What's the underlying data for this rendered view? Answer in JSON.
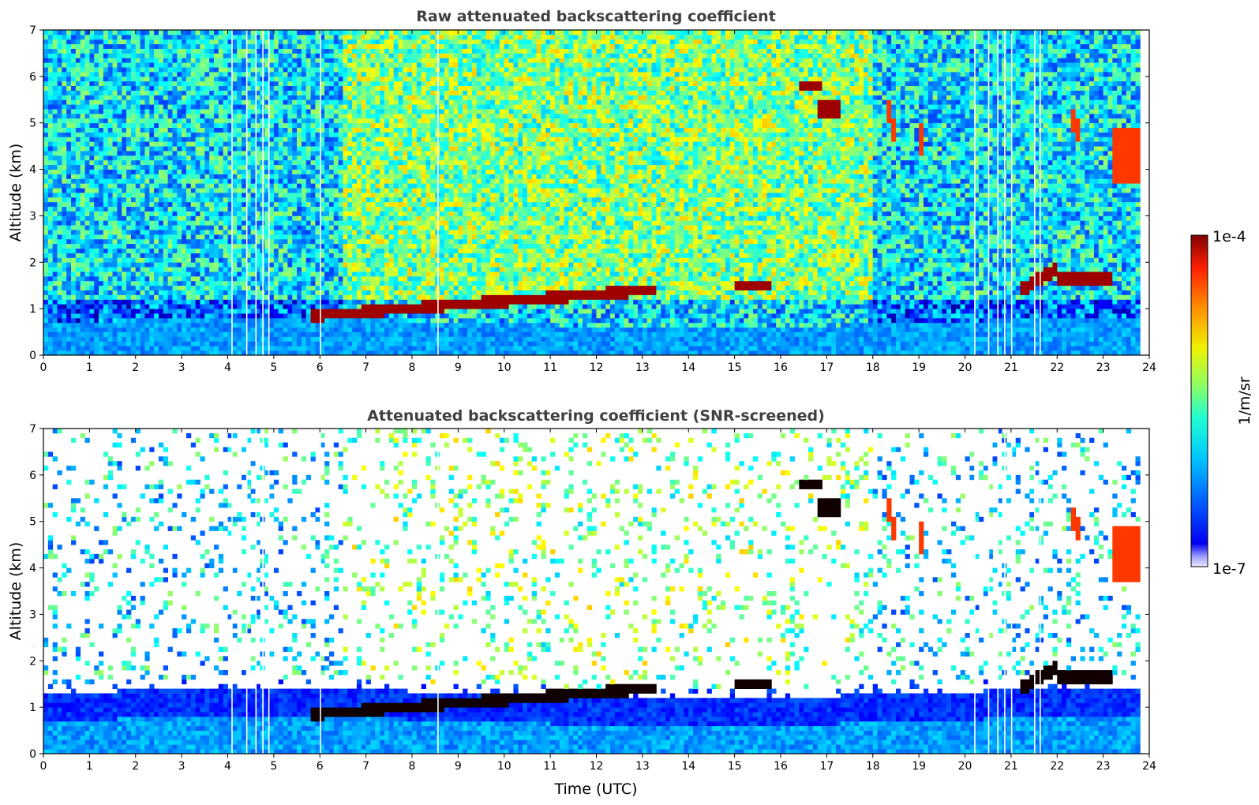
{
  "chart_data": [
    {
      "type": "heatmap",
      "title": "Raw attenuated backscattering coefficient",
      "xlabel": "",
      "ylabel": "Altitude (km)",
      "xlim": [
        0,
        24
      ],
      "ylim": [
        0,
        7
      ],
      "xticks": [
        "0",
        "1",
        "2",
        "3",
        "4",
        "5",
        "6",
        "7",
        "8",
        "9",
        "10",
        "11",
        "12",
        "13",
        "14",
        "15",
        "16",
        "17",
        "18",
        "19",
        "20",
        "21",
        "22",
        "23",
        "24"
      ],
      "yticks": [
        "0",
        "1",
        "2",
        "3",
        "4",
        "5",
        "6",
        "7"
      ],
      "features": [
        {
          "label": "boundary layer aerosol",
          "x": [
            0,
            23.8
          ],
          "y": [
            0,
            0.9
          ]
        },
        {
          "label": "cloud layer",
          "x": [
            5.8,
            13.2
          ],
          "y": [
            0.8,
            1.6
          ]
        },
        {
          "label": "cloud",
          "x": [
            15,
            15.8
          ],
          "y": [
            1.4,
            1.6
          ]
        },
        {
          "label": "cloud",
          "x": [
            21.2,
            23.2
          ],
          "y": [
            1.4,
            2.0
          ]
        },
        {
          "label": "cloud",
          "x": [
            16.5,
            16.9
          ],
          "y": [
            5.7,
            5.9
          ]
        },
        {
          "label": "cloud",
          "x": [
            16.8,
            17.3
          ],
          "y": [
            5.1,
            5.5
          ]
        },
        {
          "label": "cloud",
          "x": [
            18.3,
            18.6
          ],
          "y": [
            4.4,
            5.4
          ]
        },
        {
          "label": "cloud",
          "x": [
            22.3,
            22.5
          ],
          "y": [
            4.6,
            5.3
          ]
        },
        {
          "label": "cloud",
          "x": [
            23.2,
            23.8
          ],
          "y": [
            3.6,
            4.9
          ]
        }
      ]
    },
    {
      "type": "heatmap",
      "title": "Attenuated backscattering coefficient (SNR-screened)",
      "xlabel": "Time (UTC)",
      "ylabel": "Altitude (km)",
      "xlim": [
        0,
        24
      ],
      "ylim": [
        0,
        7
      ],
      "xticks": [
        "0",
        "1",
        "2",
        "3",
        "4",
        "5",
        "6",
        "7",
        "8",
        "9",
        "10",
        "11",
        "12",
        "13",
        "14",
        "15",
        "16",
        "17",
        "18",
        "19",
        "20",
        "21",
        "22",
        "23",
        "24"
      ],
      "yticks": [
        "0",
        "1",
        "2",
        "3",
        "4",
        "5",
        "6",
        "7"
      ]
    }
  ],
  "colorbar": {
    "label": "1/m/sr",
    "max_label": "1e-4",
    "min_label": "1e-7",
    "scale": "log",
    "colormap": "jet"
  }
}
